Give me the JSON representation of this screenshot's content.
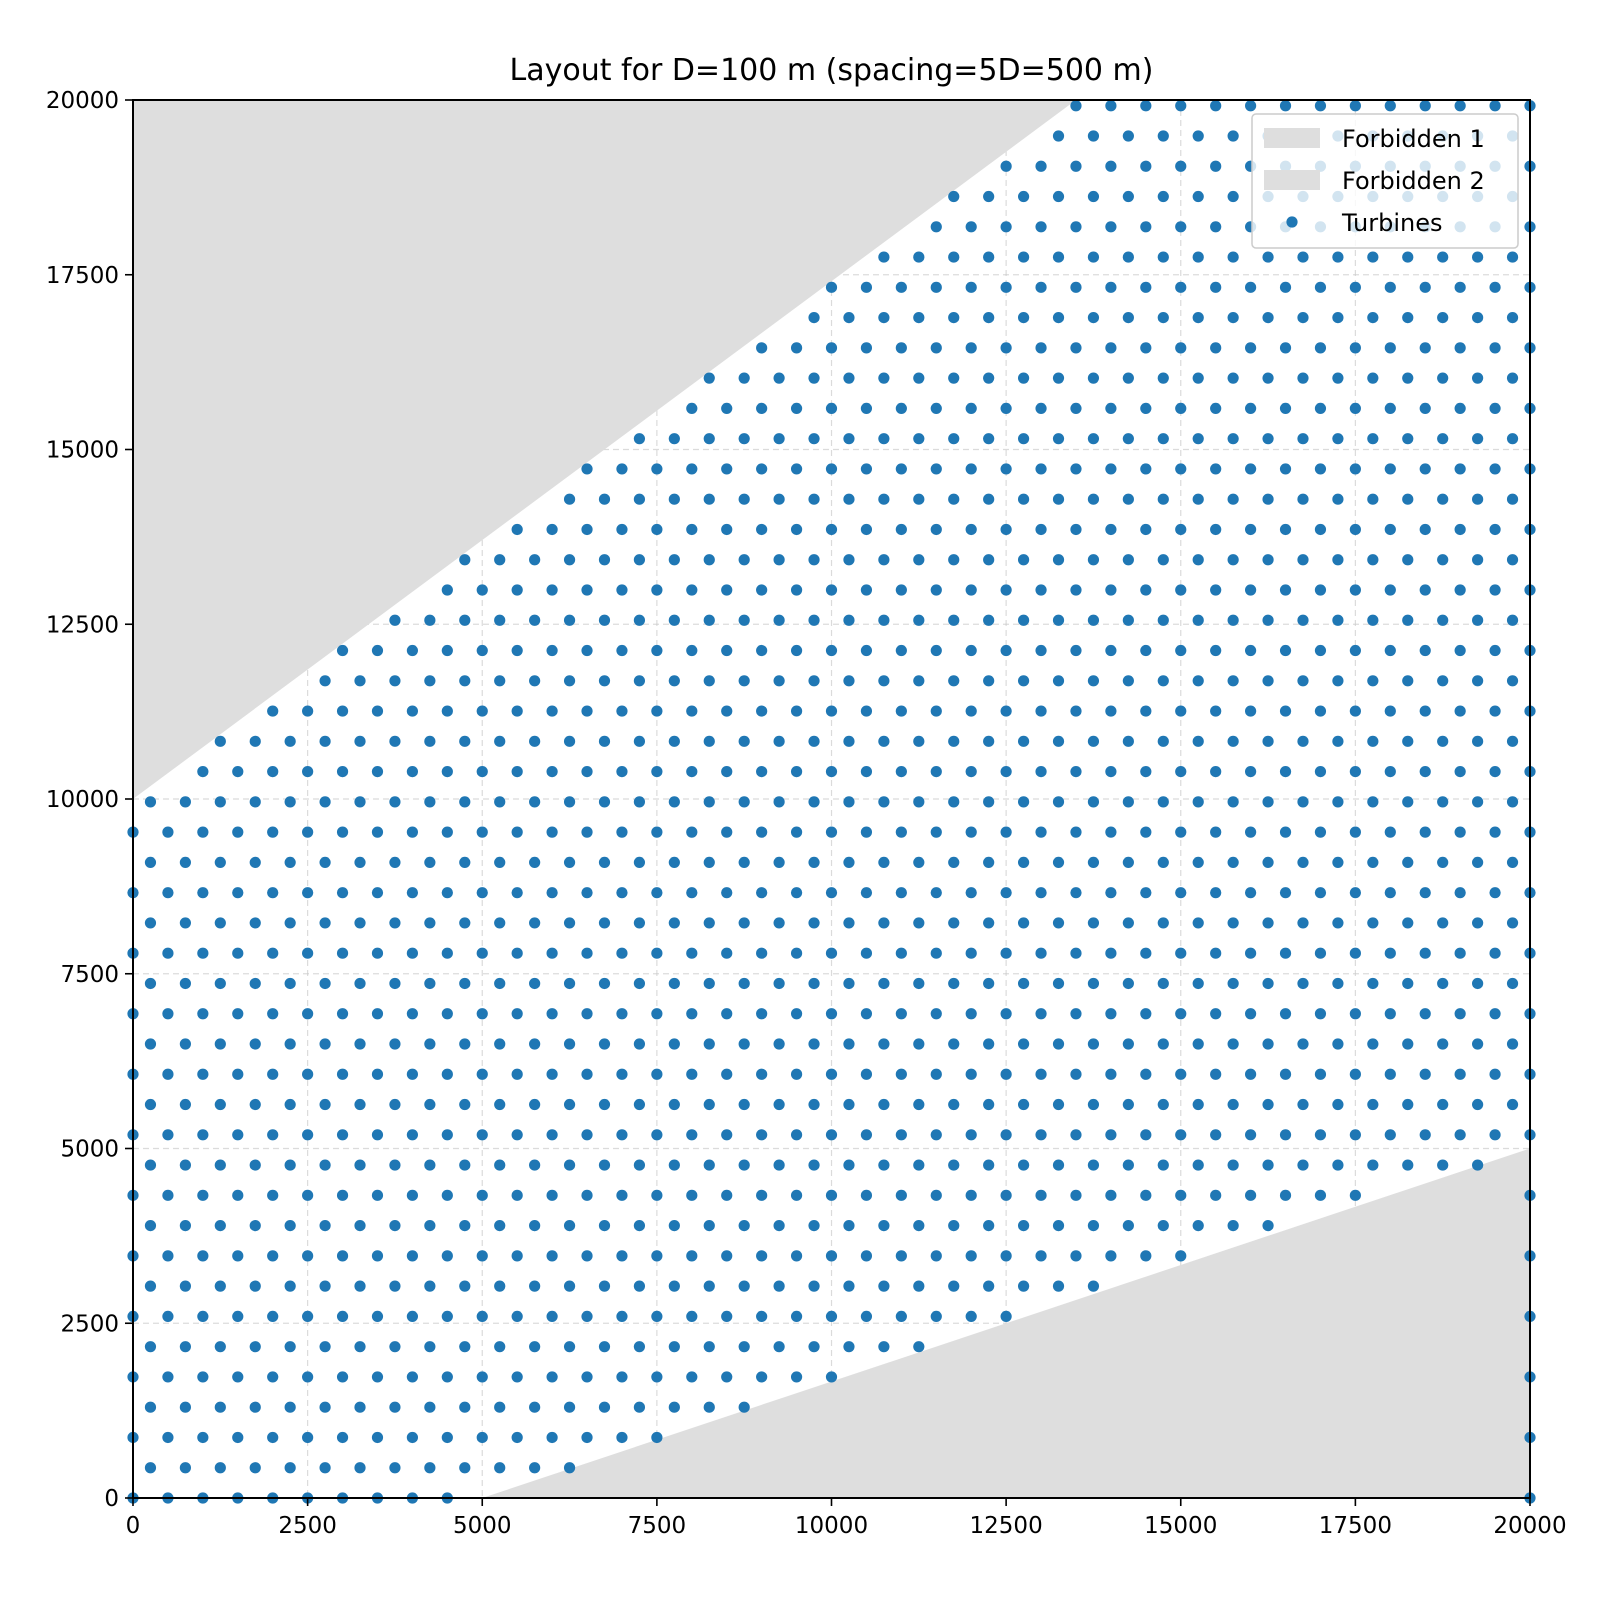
{
  "chart_data": {
    "type": "scatter",
    "title": "Layout for D=100 m (spacing=5D=500 m)",
    "xlabel": "",
    "ylabel": "",
    "xlim": [
      0,
      20000
    ],
    "ylim": [
      0,
      20000
    ],
    "xticks": [
      0,
      2500,
      5000,
      7500,
      10000,
      12500,
      15000,
      17500,
      20000
    ],
    "yticks": [
      0,
      2500,
      5000,
      7500,
      10000,
      12500,
      15000,
      17500,
      20000
    ],
    "xtick_labels": [
      "0",
      "2500",
      "5000",
      "7500",
      "10000",
      "12500",
      "15000",
      "17500",
      "20000"
    ],
    "ytick_labels": [
      "0",
      "2500",
      "5000",
      "7500",
      "10000",
      "12500",
      "15000",
      "17500",
      "20000"
    ],
    "grid": true,
    "legend_position": "top-right",
    "legend": [
      "Forbidden 1",
      "Forbidden 2",
      "Turbines"
    ],
    "forbidden_regions": [
      {
        "name": "Forbidden 1",
        "color": "#dedede",
        "polygon": [
          [
            0,
            10000
          ],
          [
            13500,
            20000
          ],
          [
            0,
            20000
          ]
        ]
      },
      {
        "name": "Forbidden 2",
        "color": "#dedede",
        "polygon": [
          [
            5000,
            0
          ],
          [
            20000,
            5000
          ],
          [
            20000,
            0
          ]
        ]
      }
    ],
    "turbines": {
      "name": "Turbines",
      "color": "#1f77b4",
      "layout": "hexagonal grid",
      "spacing_m": 500,
      "row_spacing_m": 433,
      "odd_row_offset_m": 250,
      "rows": 47,
      "x_origin": 0,
      "y_origin": 0
    }
  }
}
